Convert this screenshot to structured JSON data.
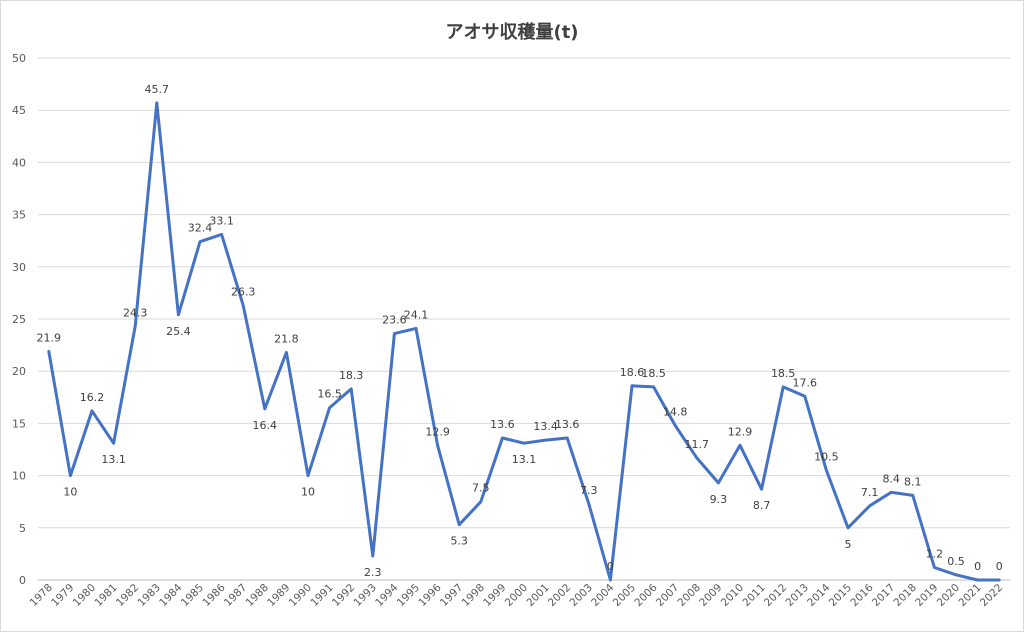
{
  "chart_data": {
    "type": "line",
    "title": "アオサ収穫量(t)",
    "xlabel": "",
    "ylabel": "",
    "ylim": [
      0,
      50
    ],
    "yticks": [
      0,
      5,
      10,
      15,
      20,
      25,
      30,
      35,
      40,
      45,
      50
    ],
    "grid": "horizontal",
    "legend": "none",
    "line_color": "#4472C4",
    "categories": [
      "1978",
      "1979",
      "1980",
      "1981",
      "1982",
      "1983",
      "1984",
      "1985",
      "1986",
      "1987",
      "1988",
      "1989",
      "1990",
      "1991",
      "1992",
      "1993",
      "1994",
      "1995",
      "1996",
      "1997",
      "1998",
      "1999",
      "2000",
      "2001",
      "2002",
      "2003",
      "2004",
      "2005",
      "2006",
      "2007",
      "2008",
      "2009",
      "2010",
      "2011",
      "2012",
      "2013",
      "2014",
      "2015",
      "2016",
      "2017",
      "2018",
      "2019",
      "2020",
      "2021",
      "2022"
    ],
    "values": [
      21.9,
      10,
      16.2,
      13.1,
      24.3,
      45.7,
      25.4,
      32.4,
      33.1,
      26.3,
      16.4,
      21.8,
      10,
      16.5,
      18.3,
      2.3,
      23.6,
      24.1,
      12.9,
      5.3,
      7.5,
      13.6,
      13.1,
      13.4,
      13.6,
      7.3,
      0,
      18.6,
      18.5,
      14.8,
      11.7,
      9.3,
      12.9,
      8.7,
      18.5,
      17.6,
      10.5,
      5,
      7.1,
      8.4,
      8.1,
      1.2,
      0.5,
      0,
      0
    ]
  }
}
